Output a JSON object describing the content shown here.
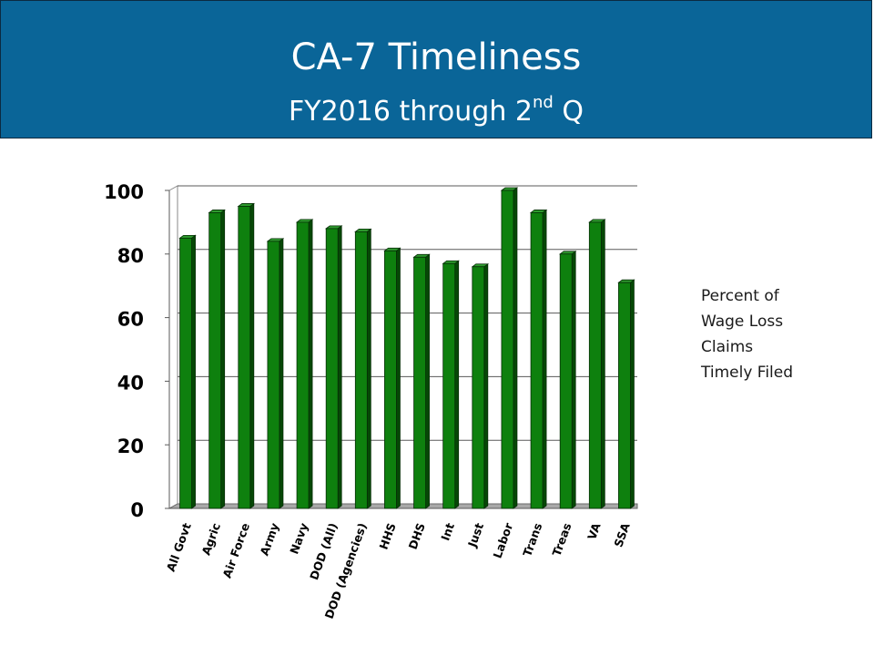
{
  "header": {
    "title": "CA-7 Timeliness",
    "subtitle_main": "FY2016 through 2",
    "subtitle_sup": "nd",
    "subtitle_tail": " Q"
  },
  "note": {
    "lines": [
      "Percent of",
      "Wage Loss",
      "Claims",
      "Timely Filed"
    ]
  },
  "colors": {
    "header_bg": "#0a6598",
    "bar_front": "#0e800e",
    "bar_side": "#064806",
    "bar_top": "#2e9a2e"
  },
  "chart_data": {
    "type": "bar",
    "title": "",
    "xlabel": "",
    "ylabel": "",
    "categories": [
      "All Govt",
      "Agric",
      "Air Force",
      "Army",
      "Navy",
      "DOD (All)",
      "DOD (Agencies)",
      "HHS",
      "DHS",
      "Int",
      "Just",
      "Labor",
      "Trans",
      "Treas",
      "VA",
      "SSA"
    ],
    "values": [
      85,
      93,
      95,
      84,
      90,
      88,
      87,
      81,
      79,
      77,
      76,
      100,
      93,
      80,
      90,
      71
    ],
    "ylim": [
      0,
      100
    ],
    "yticks": [
      0,
      20,
      40,
      60,
      80,
      100
    ],
    "grid": true,
    "legend": "none"
  }
}
